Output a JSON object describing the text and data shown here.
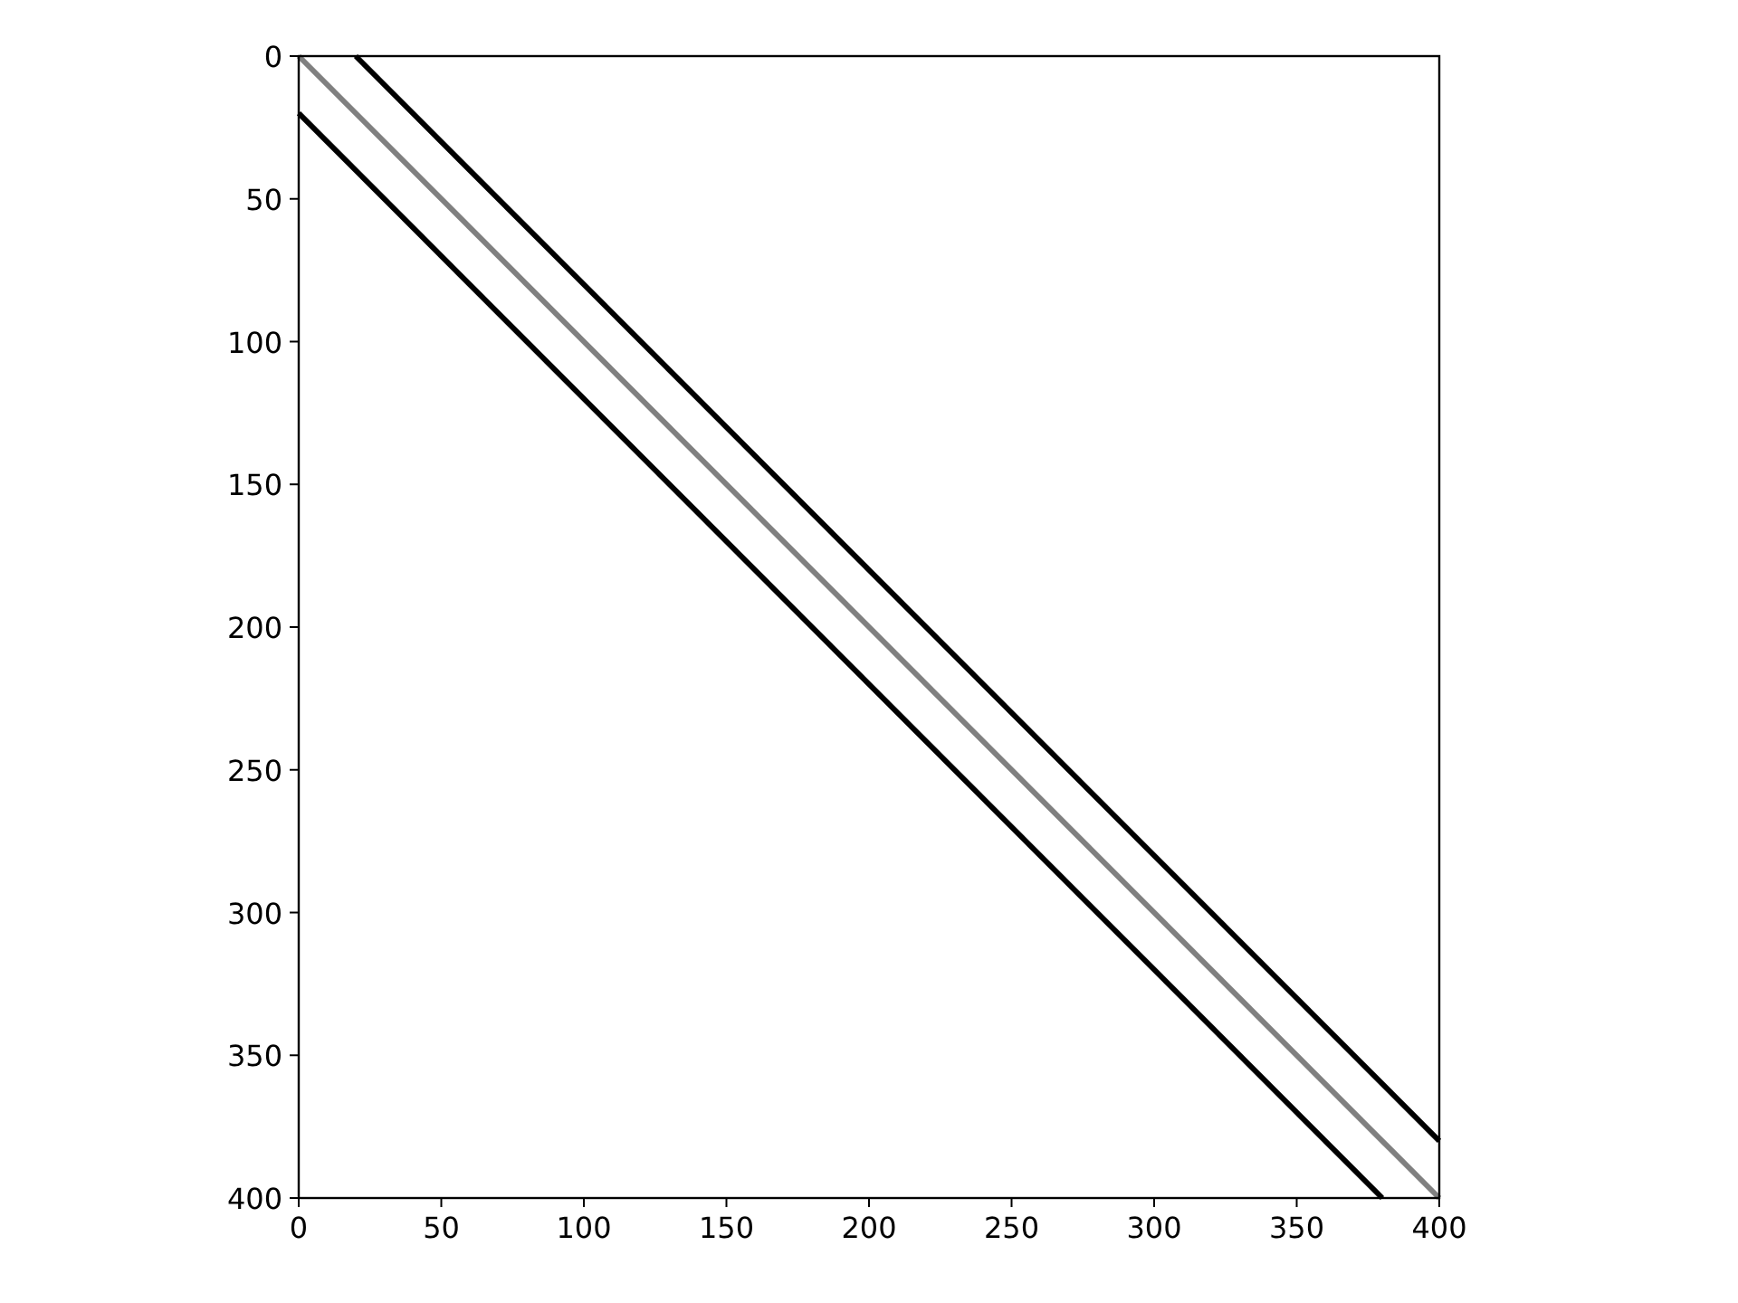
{
  "chart_data": {
    "type": "line",
    "xlim": [
      0,
      400
    ],
    "ylim": [
      400,
      0
    ],
    "xticks": [
      0,
      50,
      100,
      150,
      200,
      250,
      300,
      350,
      400
    ],
    "yticks": [
      0,
      50,
      100,
      150,
      200,
      250,
      300,
      350,
      400
    ],
    "series": [
      {
        "color": "#000000",
        "x": [
          20,
          400
        ],
        "values": [
          0,
          380
        ]
      },
      {
        "color": "#808080",
        "x": [
          0,
          400
        ],
        "values": [
          0,
          400
        ]
      },
      {
        "color": "#000000",
        "x": [
          0,
          380
        ],
        "values": [
          20,
          400
        ]
      }
    ]
  }
}
